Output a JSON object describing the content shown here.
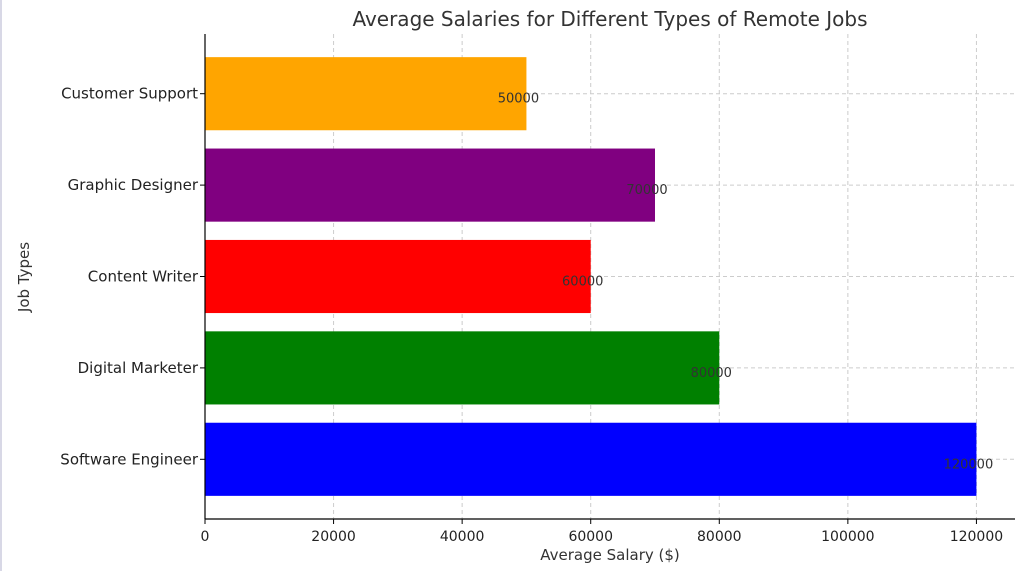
{
  "chart_data": {
    "type": "bar",
    "orientation": "horizontal",
    "title": "Average Salaries for Different Types of Remote Jobs",
    "xlabel": "Average Salary ($)",
    "ylabel": "Job Types",
    "categories": [
      "Software Engineer",
      "Digital Marketer",
      "Content Writer",
      "Graphic Designer",
      "Customer Support"
    ],
    "values": [
      120000,
      80000,
      60000,
      70000,
      50000
    ],
    "colors": [
      "#0000ff",
      "#008000",
      "#ff0000",
      "#800080",
      "#ffa500"
    ],
    "xlim": [
      0,
      126000
    ],
    "xticks": [
      0,
      20000,
      40000,
      60000,
      80000,
      100000,
      120000
    ],
    "grid": true,
    "data_labels": true
  }
}
